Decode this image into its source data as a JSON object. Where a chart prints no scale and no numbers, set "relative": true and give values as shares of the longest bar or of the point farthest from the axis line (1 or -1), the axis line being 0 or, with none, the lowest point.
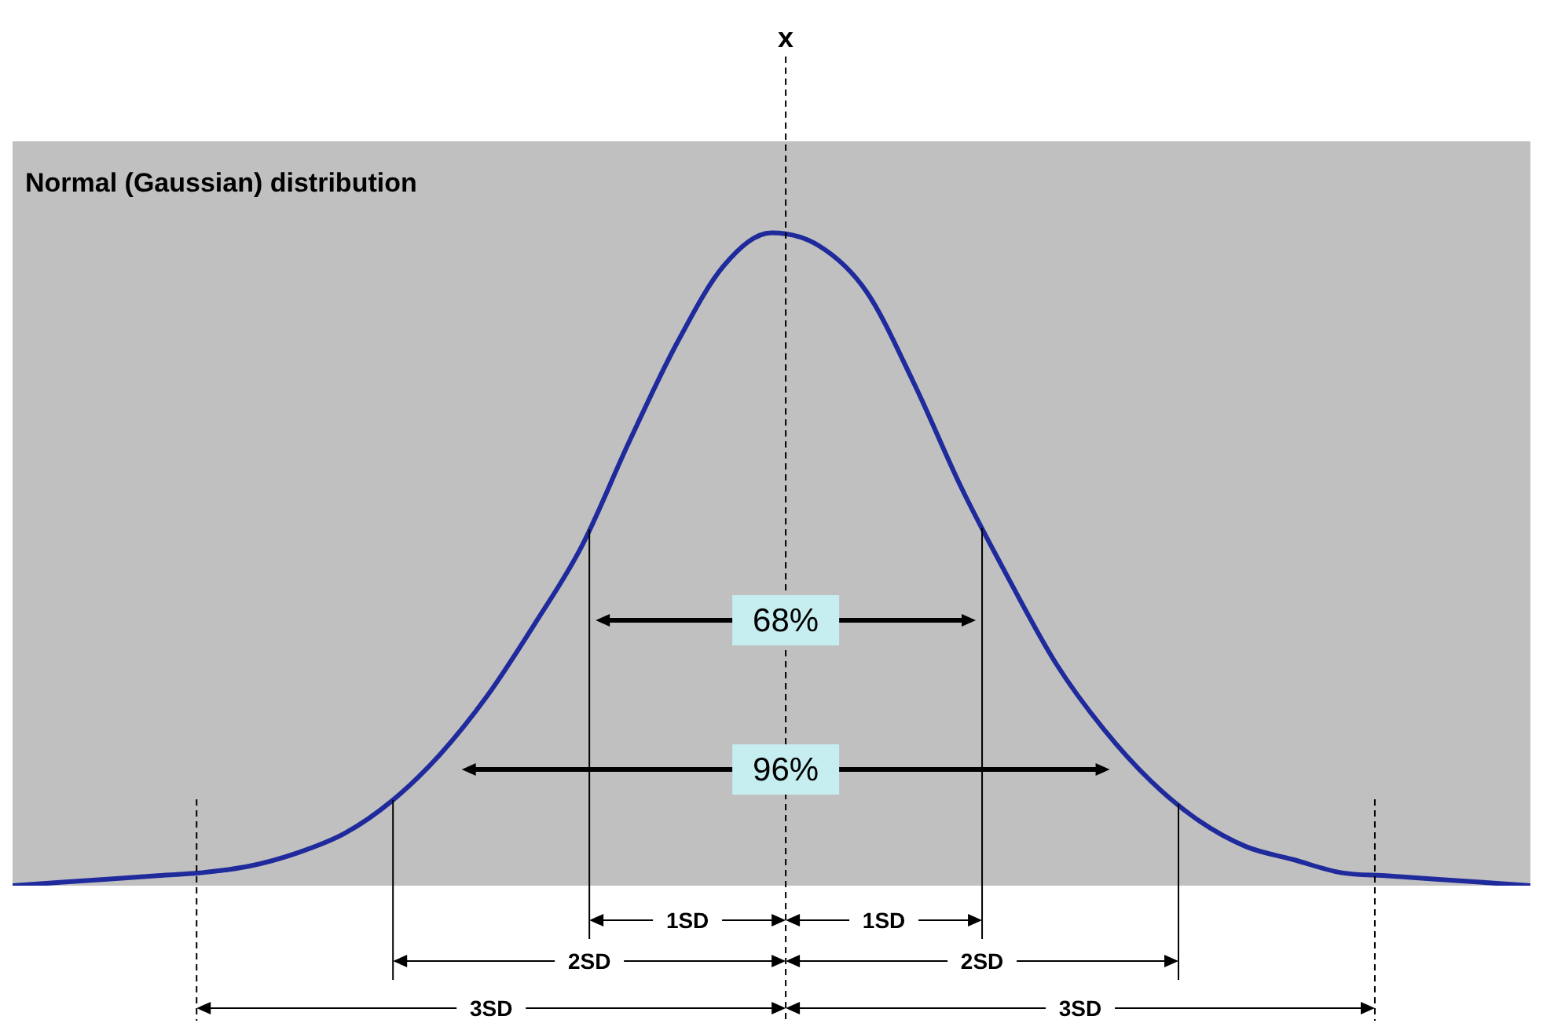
{
  "chart_data": {
    "type": "line",
    "title": "Normal (Gaussian) distribution",
    "relative": true,
    "legend": false,
    "marker": "none",
    "categories": [
      null,
      null,
      null,
      null,
      null,
      null,
      null,
      null,
      null,
      null,
      null,
      null,
      null,
      null,
      null,
      null,
      null,
      null,
      null,
      null,
      null,
      null,
      null,
      null,
      null,
      null,
      null,
      null,
      null,
      null,
      null,
      null,
      null
    ],
    "series": [
      {
        "color": "#1f2a9c",
        "values": [
          0,
          0.005,
          0.01,
          0.015,
          0.02,
          0.03,
          0.05,
          0.08,
          0.13,
          0.2,
          0.29,
          0.4,
          0.52,
          0.68,
          0.83,
          0.95,
          1,
          0.98,
          0.91,
          0.77,
          0.61,
          0.47,
          0.34,
          0.24,
          0.16,
          0.1,
          0.06,
          0.04,
          0.02,
          0.015,
          0.01,
          0.005,
          0
        ]
      }
    ],
    "annotations": [
      "x",
      "68%",
      "96%",
      "1SD",
      "1SD",
      "2SD",
      "2SD",
      "3SD",
      "3SD"
    ]
  }
}
